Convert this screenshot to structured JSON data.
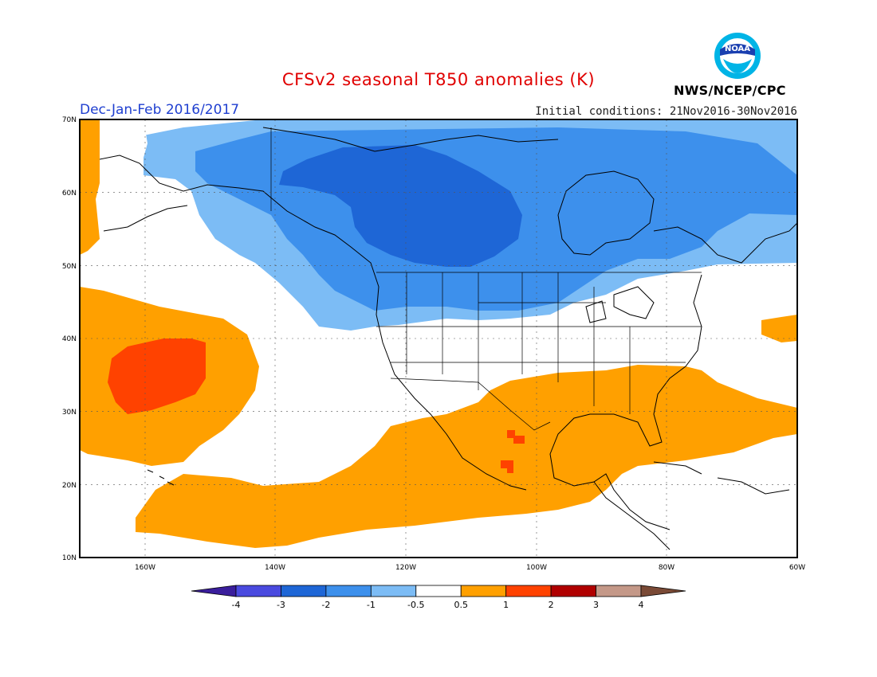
{
  "title": "CFSv2 seasonal T850 anomalies (K)",
  "season": "Dec-Jan-Feb 2016/2017",
  "initial_conditions": "Initial conditions: 21Nov2016-30Nov2016",
  "agency": "NWS/NCEP/CPC",
  "logo_text": "NOAA",
  "lat_labels": [
    "70N",
    "60N",
    "50N",
    "40N",
    "30N",
    "20N",
    "10N"
  ],
  "lon_labels": [
    "160W",
    "140W",
    "120W",
    "100W",
    "80W",
    "60W"
  ],
  "colorbar": {
    "labels": [
      "-4",
      "-3",
      "-2",
      "-1",
      "-0.5",
      "0.5",
      "1",
      "2",
      "3",
      "4"
    ],
    "colors": [
      "#3a1e9c",
      "#4a4adf",
      "#1e66d6",
      "#3d90ec",
      "#7cbcf5",
      "#ffffff",
      "#ffa000",
      "#ff4200",
      "#b00000",
      "#c49888",
      "#7a4a36"
    ]
  }
}
